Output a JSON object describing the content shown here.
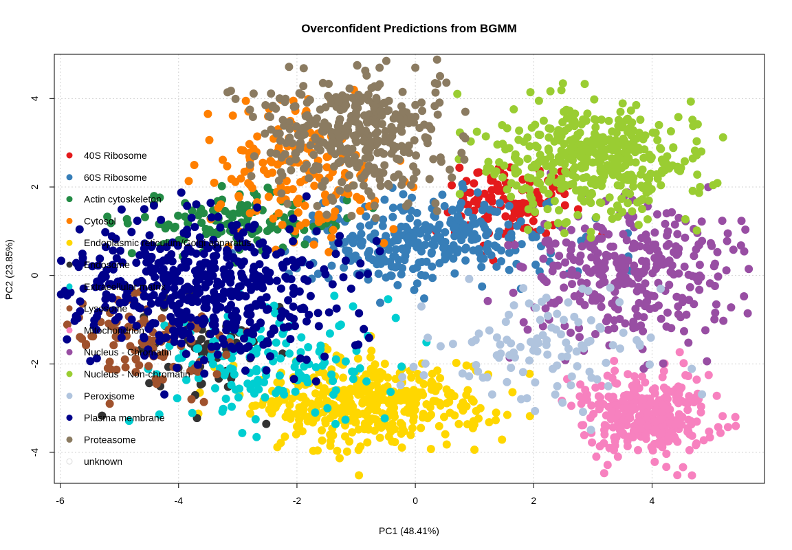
{
  "chart_data": {
    "type": "scatter",
    "title": "Overconfident Predictions from BGMM",
    "xlabel": "PC1 (48.41%)",
    "ylabel": "PC2 (23.85%)",
    "xlim": [
      -6.1,
      5.9
    ],
    "ylim": [
      -4.7,
      5.0
    ],
    "xticks": [
      -6,
      -4,
      -2,
      0,
      2,
      4
    ],
    "yticks": [
      -4,
      -2,
      0,
      2,
      4
    ],
    "grid": true,
    "legend_position": "left",
    "series": [
      {
        "name": "40S Ribosome",
        "color": "#E41A1C",
        "center": [
          1.6,
          1.6
        ],
        "spread": [
          0.5,
          0.45
        ],
        "count": 120
      },
      {
        "name": "60S Ribosome",
        "color": "#377EB8",
        "center": [
          0.2,
          0.8
        ],
        "spread": [
          1.1,
          0.5
        ],
        "count": 300
      },
      {
        "name": "Actin cytoskeleton",
        "color": "#238B45",
        "center": [
          -3.0,
          1.2
        ],
        "spread": [
          0.9,
          0.35
        ],
        "count": 130
      },
      {
        "name": "Cytosol",
        "color": "#FF7F00",
        "center": [
          -2.0,
          2.3
        ],
        "spread": [
          0.8,
          0.8
        ],
        "count": 170
      },
      {
        "name": "Endoplasmic reticulum/Golgi apparatus",
        "color": "#FFD700",
        "center": [
          -0.8,
          -2.9
        ],
        "spread": [
          1.0,
          0.5
        ],
        "count": 420
      },
      {
        "name": "Endosome",
        "color": "#333333",
        "center": [
          -3.6,
          -1.7
        ],
        "spread": [
          0.6,
          0.6
        ],
        "count": 60
      },
      {
        "name": "Extracellular matrix",
        "color": "#00CED1",
        "center": [
          -2.5,
          -2.0
        ],
        "spread": [
          1.0,
          0.6
        ],
        "count": 150
      },
      {
        "name": "Lysosome",
        "color": "#A0522D",
        "center": [
          -4.6,
          -1.5
        ],
        "spread": [
          0.7,
          0.5
        ],
        "count": 100
      },
      {
        "name": "Mitochondrion",
        "color": "#F781BF",
        "center": [
          3.9,
          -3.1
        ],
        "spread": [
          0.6,
          0.45
        ],
        "count": 330
      },
      {
        "name": "Nucleus - Chromatin",
        "color": "#984EA3",
        "center": [
          3.7,
          0.1
        ],
        "spread": [
          0.9,
          0.8
        ],
        "count": 330
      },
      {
        "name": "Nucleus - Non-chromatin",
        "color": "#9ACD32",
        "center": [
          3.0,
          2.6
        ],
        "spread": [
          0.9,
          0.65
        ],
        "count": 420
      },
      {
        "name": "Peroxisome",
        "color": "#B0C4DE",
        "center": [
          2.0,
          -1.8
        ],
        "spread": [
          1.0,
          0.7
        ],
        "count": 110
      },
      {
        "name": "Plasma membrane",
        "color": "#00008B",
        "center": [
          -3.7,
          -0.3
        ],
        "spread": [
          1.2,
          0.8
        ],
        "count": 520
      },
      {
        "name": "Proteasome",
        "color": "#8B7B61",
        "center": [
          -1.0,
          3.2
        ],
        "spread": [
          0.8,
          0.7
        ],
        "count": 380
      },
      {
        "name": "unknown",
        "color": "#FFFFFF",
        "center": [
          0,
          0
        ],
        "spread": [
          0,
          0
        ],
        "count": 0
      }
    ]
  }
}
